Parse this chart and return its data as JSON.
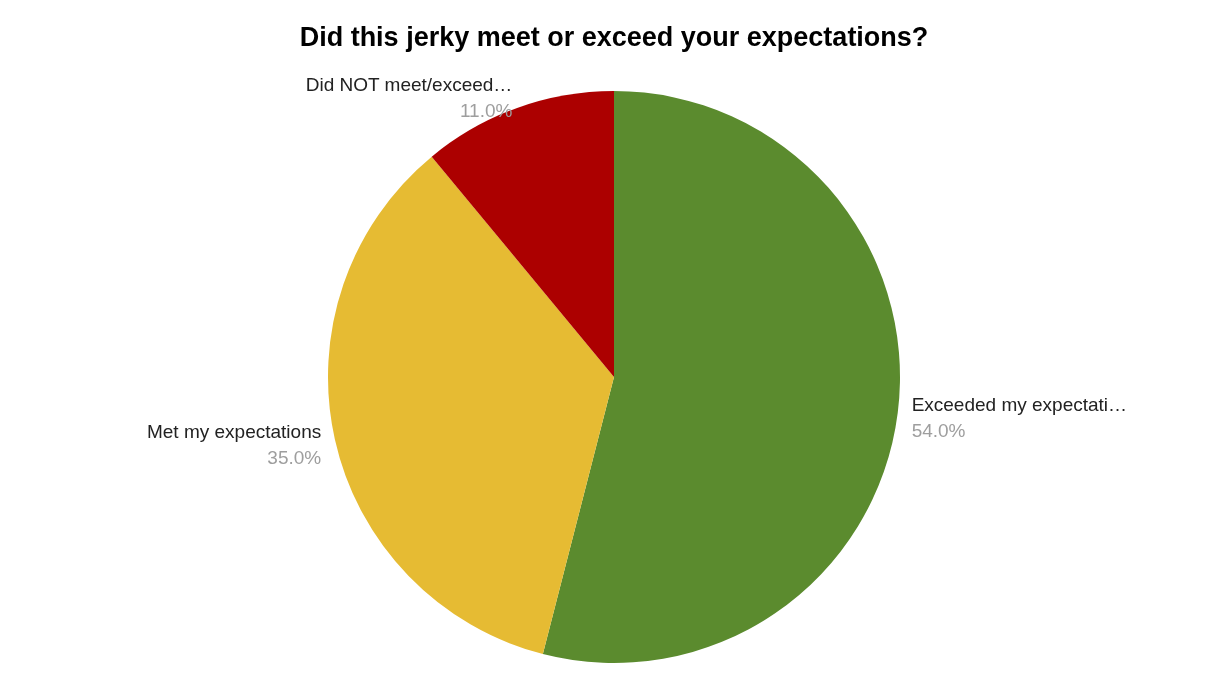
{
  "chart_data": {
    "type": "pie",
    "title": "Did this jerky meet or exceed your expectations?",
    "categories": [
      "Exceeded my expectati…",
      "Met my expectations",
      "Did NOT meet/exceed…"
    ],
    "values": [
      54,
      35,
      11
    ],
    "colors": [
      "#5b8b2e",
      "#e6bb33",
      "#ac0000"
    ],
    "value_labels": [
      "54.0%",
      "35.0%",
      "11.0%"
    ],
    "legend": false
  }
}
